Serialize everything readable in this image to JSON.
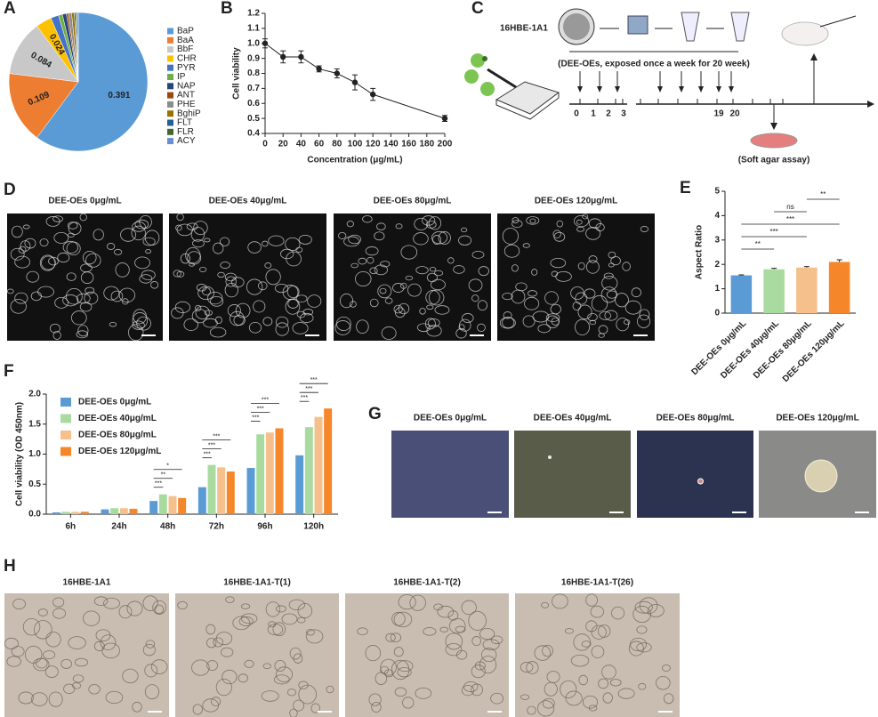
{
  "panel_labels": [
    "A",
    "B",
    "C",
    "D",
    "E",
    "F",
    "G",
    "H"
  ],
  "chart_data": [
    {
      "type": "pie",
      "categories": [
        "BaP",
        "BaA",
        "BbF",
        "CHR",
        "PYR",
        "IP",
        "NAP",
        "ANT",
        "PHE",
        "BghiP",
        "FLT",
        "FLR",
        "ACY"
      ],
      "values": [
        0.391,
        0.109,
        0.084,
        0.024,
        0.012,
        0.006,
        0.006,
        0.003,
        0.005,
        0.004,
        0.002,
        0.002,
        0.002
      ],
      "value_labels": [
        "0.391",
        "0.109",
        "0.084",
        "0.024",
        null,
        null,
        null,
        null,
        null,
        null,
        null,
        null,
        null
      ],
      "colors": [
        "#5b9bd5",
        "#ed7d31",
        "#c8c8c8",
        "#ffc000",
        "#4472c4",
        "#70ad47",
        "#264478",
        "#9e480e",
        "#8c8c8c",
        "#997300",
        "#255e91",
        "#43682b",
        "#698ed0"
      ]
    },
    {
      "type": "line",
      "xlabel": "Concentration (μg/mL)",
      "ylabel": "Cell viability",
      "x": [
        0,
        20,
        40,
        60,
        80,
        100,
        120,
        200
      ],
      "series": [
        {
          "color": "#222222",
          "values": [
            1.0,
            0.91,
            0.91,
            0.83,
            0.8,
            0.74,
            0.66,
            0.5
          ],
          "errors": [
            0.03,
            0.04,
            0.04,
            0.02,
            0.03,
            0.05,
            0.04,
            0.02
          ]
        }
      ],
      "xlim": [
        0,
        200
      ],
      "xticks": [
        0,
        20,
        40,
        60,
        80,
        100,
        120,
        140,
        160,
        180,
        200
      ],
      "ylim": [
        0.4,
        1.2
      ],
      "yticks": [
        0.4,
        0.5,
        0.6,
        0.7,
        0.8,
        0.9,
        {
          "value": 1,
          "label": "1.0"
        },
        1.1,
        1.2
      ]
    },
    {
      "type": "bar",
      "ylabel": "Aspect Ratio",
      "categories": [
        "DEE-OEs 0μg/mL",
        "DEE-OEs 40μg/mL",
        "DEE-OEs 80μg/mL",
        "DEE-OEs 120μg/mL"
      ],
      "values": [
        1.55,
        1.8,
        1.87,
        2.1
      ],
      "errors": [
        0.02,
        0.04,
        0.04,
        0.09
      ],
      "colors": [
        "#5b9bd5",
        "#a9dba0",
        "#f6c08c",
        "#f5862a"
      ],
      "ylim": [
        0,
        5
      ],
      "yticks": [
        0,
        1,
        2,
        3,
        4,
        5
      ],
      "comparisons": [
        {
          "pair": [
            0,
            1
          ],
          "label": "**"
        },
        {
          "pair": [
            0,
            2
          ],
          "label": "***"
        },
        {
          "pair": [
            0,
            3
          ],
          "label": "***"
        },
        {
          "pair": [
            1,
            2
          ],
          "label": "ns"
        },
        {
          "pair": [
            2,
            3
          ],
          "label": "**"
        }
      ]
    },
    {
      "type": "grouped_bar",
      "ylabel": "Cell viability (OD 450nm)",
      "categories": [
        "6h",
        "24h",
        "48h",
        "72h",
        "96h",
        "120h"
      ],
      "series": [
        {
          "name": "DEE-OEs 0μg/mL",
          "color": "#5b9bd5",
          "values": [
            0.03,
            0.08,
            0.22,
            0.45,
            0.77,
            0.98
          ]
        },
        {
          "name": "DEE-OEs 40μg/mL",
          "color": "#a9dba0",
          "values": [
            0.04,
            0.1,
            0.33,
            0.82,
            1.33,
            1.45
          ]
        },
        {
          "name": "DEE-OEs 80μg/mL",
          "color": "#f6c08c",
          "values": [
            0.04,
            0.1,
            0.3,
            0.78,
            1.36,
            1.62
          ]
        },
        {
          "name": "DEE-OEs 120μg/mL",
          "color": "#f5862a",
          "values": [
            0.04,
            0.09,
            0.27,
            0.71,
            1.43,
            1.76
          ]
        }
      ],
      "ylim": [
        0,
        2
      ],
      "yticks": [
        {
          "value": 0,
          "label": "0.0"
        },
        0.5,
        {
          "value": 1,
          "label": "1.0"
        },
        1.5,
        {
          "value": 2,
          "label": "2.0"
        }
      ],
      "significance": [
        [],
        [],
        [
          "***",
          "**",
          "*"
        ],
        [
          "***",
          "***",
          "***"
        ],
        [
          "***",
          "***",
          "***"
        ],
        [
          "***",
          "***",
          "***"
        ]
      ]
    }
  ],
  "diagram_c": {
    "cell_line": "16HBE-1A1",
    "exposure": "(DEE-OEs, exposed once a week for 20 week)",
    "timeline_labels": [
      "0",
      "1",
      "2",
      "3",
      "19",
      "20"
    ],
    "assay": "(Soft agar assay)"
  },
  "panel_d": {
    "titles": [
      "DEE-OEs 0μg/mL",
      "DEE-OEs 40μg/mL",
      "DEE-OEs 80μg/mL",
      "DEE-OEs 120μg/mL"
    ]
  },
  "panel_g": {
    "titles": [
      "DEE-OEs 0μg/mL",
      "DEE-OEs 40μg/mL",
      "DEE-OEs 80μg/mL",
      "DEE-OEs 120μg/mL"
    ]
  },
  "panel_h": {
    "titles": [
      "16HBE-1A1",
      "16HBE-1A1-T(1)",
      "16HBE-1A1-T(2)",
      "16HBE-1A1-T(26)"
    ]
  }
}
